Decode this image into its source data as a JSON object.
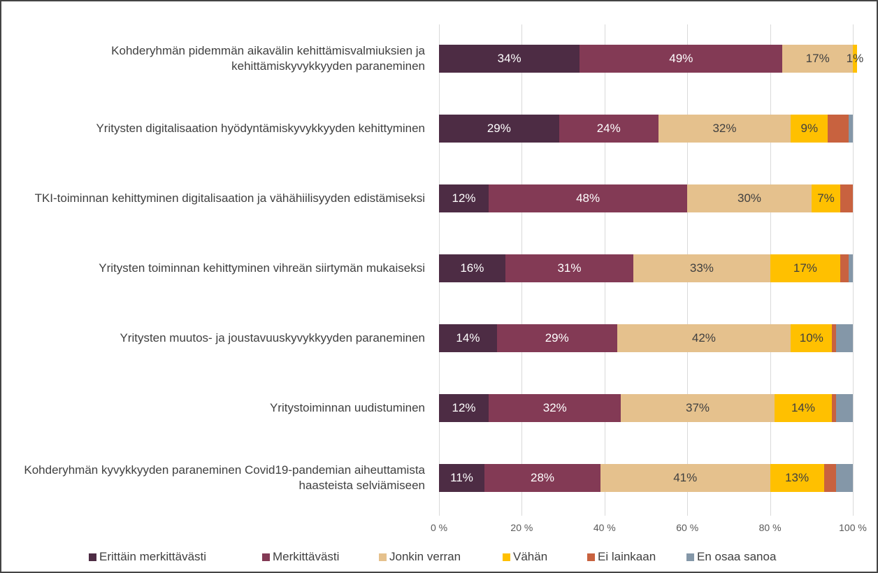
{
  "chart_data": {
    "type": "stacked_bar_horizontal",
    "categories": [
      "Kohderyhmän pidemmän aikavälin kehittämisvalmiuksien ja kehittämiskyvykkyyden paraneminen",
      "Yritysten digitalisaation hyödyntämiskyvykkyyden kehittyminen",
      "TKI-toiminnan kehittyminen digitalisaation ja vähähiilisyyden edistämiseksi",
      "Yritysten toiminnan kehittyminen vihreän siirtymän mukaiseksi",
      "Yritysten muutos- ja joustavuuskyvykkyyden paraneminen",
      "Yritystoiminnan uudistuminen",
      "Kohderyhmän kyvykkyyden paraneminen Covid19-pandemian aiheuttamista haasteista selviämiseen"
    ],
    "series": [
      {
        "name": "Erittäin merkittävästi",
        "color": "#4d2c44",
        "values": [
          34,
          29,
          12,
          16,
          14,
          12,
          11
        ],
        "value_labels": [
          "34%",
          "29%",
          "12%",
          "16%",
          "14%",
          "12%",
          "11%"
        ]
      },
      {
        "name": "Merkittävästi",
        "color": "#833a55",
        "values": [
          49,
          24,
          48,
          31,
          29,
          32,
          28
        ],
        "value_labels": [
          "49%",
          "24%",
          "48%",
          "31%",
          "29%",
          "32%",
          "28%"
        ]
      },
      {
        "name": "Jonkin verran",
        "color": "#e5c18d",
        "values": [
          17,
          32,
          30,
          33,
          42,
          37,
          41
        ],
        "value_labels": [
          "17%",
          "32%",
          "30%",
          "33%",
          "42%",
          "37%",
          "41%"
        ]
      },
      {
        "name": "Vähän",
        "color": "#ffc000",
        "values": [
          1,
          9,
          7,
          17,
          10,
          14,
          13
        ],
        "value_labels": [
          "1%",
          "9%",
          "7%",
          "17%",
          "10%",
          "14%",
          "13%"
        ]
      },
      {
        "name": "Ei lainkaan",
        "color": "#c8623f",
        "values": [
          0,
          5,
          3,
          2,
          1,
          1,
          3
        ],
        "value_labels": [
          null,
          null,
          null,
          null,
          null,
          null,
          null
        ]
      },
      {
        "name": "En osaa sanoa",
        "color": "#8497a8",
        "values": [
          0,
          1,
          0,
          1,
          4,
          4,
          4
        ],
        "value_labels": [
          null,
          null,
          null,
          null,
          null,
          null,
          null
        ]
      }
    ],
    "xlim": [
      0,
      100
    ],
    "xticks": [
      {
        "value": 0,
        "label": "0 %"
      },
      {
        "value": 20,
        "label": "20 %"
      },
      {
        "value": 40,
        "label": "40 %"
      },
      {
        "value": 60,
        "label": "60 %"
      },
      {
        "value": 80,
        "label": "80 %"
      },
      {
        "value": 100,
        "label": "100 %"
      }
    ],
    "grid": true,
    "legend": "bottom"
  }
}
